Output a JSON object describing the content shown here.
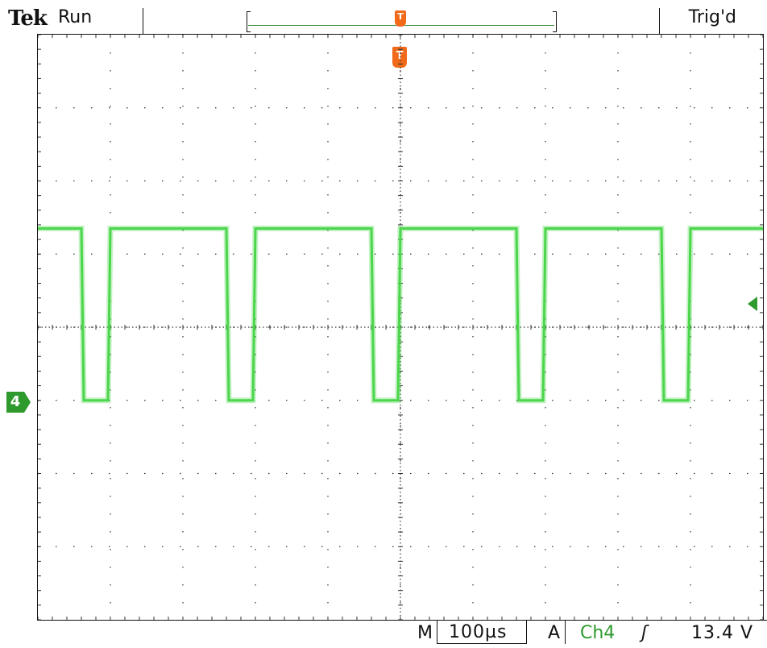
{
  "header": {
    "brand": "Tek",
    "run_state": "Run",
    "trigger_state": "Trig'd"
  },
  "markers": {
    "trigger_label": "T",
    "channel_label": "4"
  },
  "footer": {
    "timebase_prefix": "M",
    "timebase": "100µs",
    "trigger_mode": "A",
    "trigger_source": "Ch4",
    "trigger_slope": "ʃ",
    "trigger_level": "13.4 V"
  },
  "colors": {
    "trace": "#4cd64c",
    "trigger_marker": "#f06a1a",
    "channel_marker": "#2e9a2e",
    "grid": "#333333"
  },
  "waveform": {
    "high_level_div": 1.35,
    "low_level_div": -1.0,
    "low_pulses_div": [
      [
        0.6,
        1.0
      ],
      [
        2.6,
        3.0
      ],
      [
        4.6,
        5.0
      ],
      [
        6.6,
        7.0
      ],
      [
        8.6,
        9.0
      ]
    ]
  }
}
